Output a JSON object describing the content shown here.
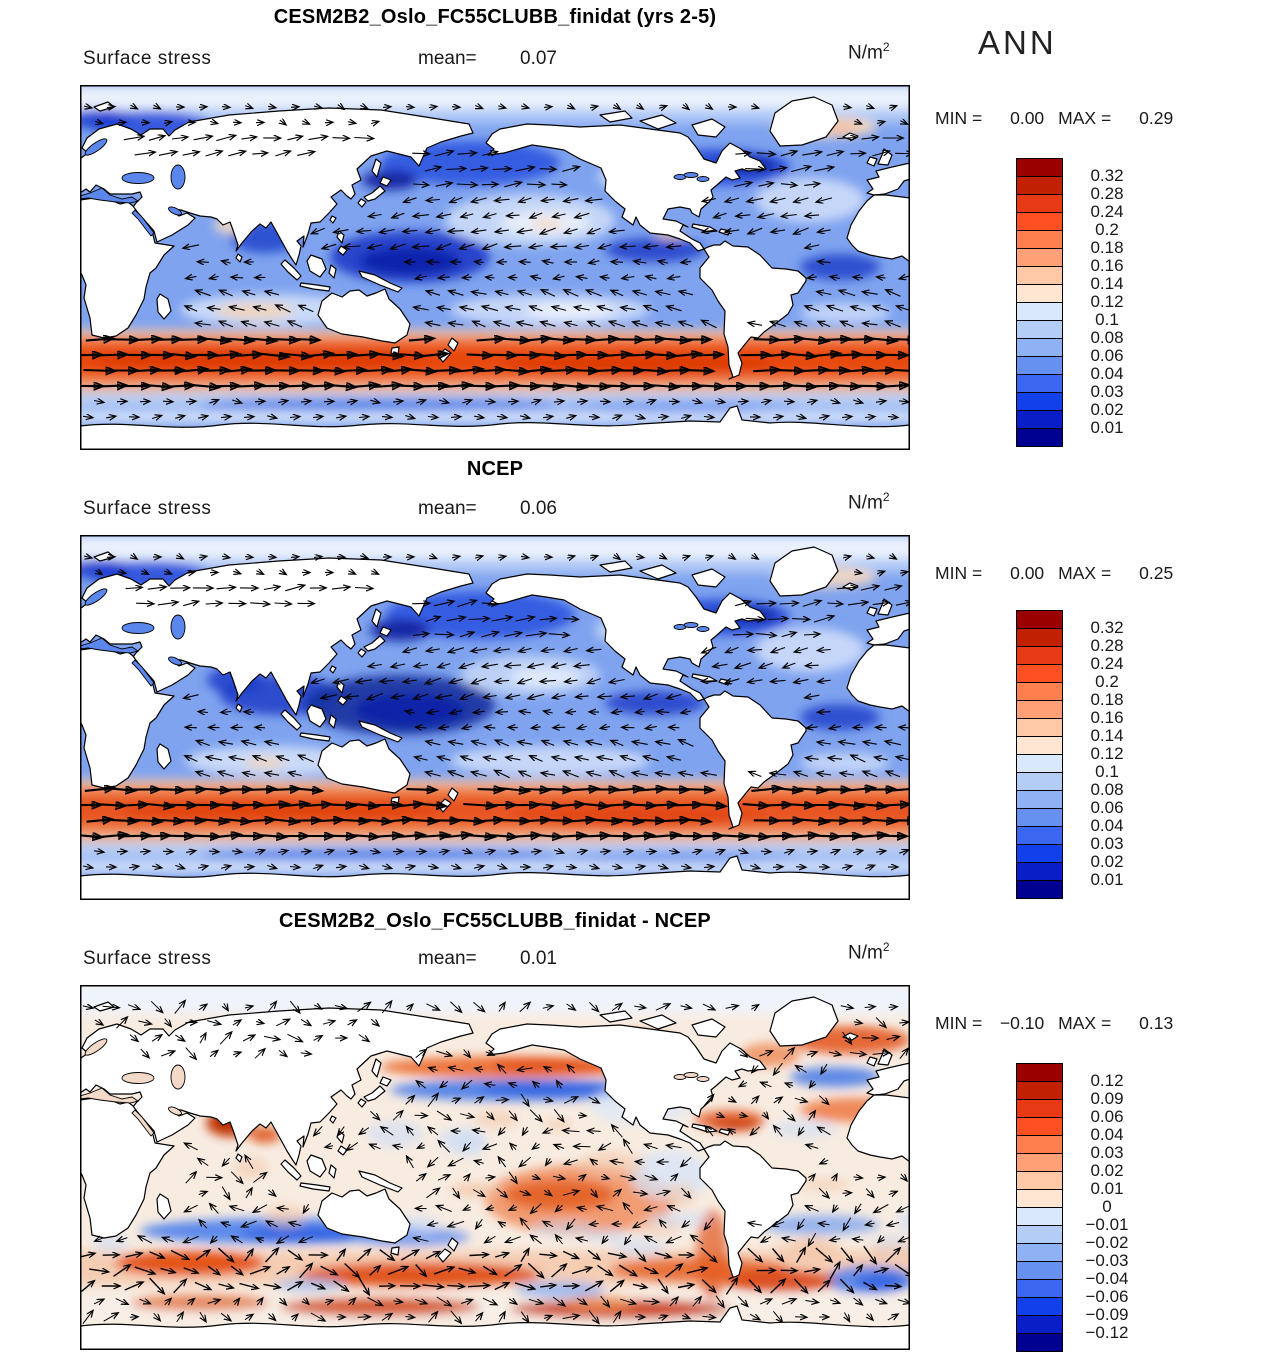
{
  "season": "ANN",
  "unit": {
    "base": "N/m",
    "exponent": "2"
  },
  "panels": [
    {
      "title": "CESM2B2_Oslo_FC55CLUBB_finidat (yrs 2-5)",
      "field_label": "Surface stress",
      "mean_label": "mean=",
      "mean_value": "0.07",
      "min_label": "MIN =",
      "min_value": "0.00",
      "max_label": "MAX =",
      "max_value": "0.29"
    },
    {
      "title": "NCEP",
      "field_label": "Surface stress",
      "mean_label": "mean=",
      "mean_value": "0.06",
      "min_label": "MIN =",
      "min_value": "0.00",
      "max_label": "MAX =",
      "max_value": "0.25"
    },
    {
      "title": "CESM2B2_Oslo_FC55CLUBB_finidat - NCEP",
      "field_label": "Surface stress",
      "mean_label": "mean=",
      "mean_value": "0.01",
      "min_label": "MIN =",
      "min_value": "−0.10",
      "max_label": "MAX =",
      "max_value": "0.13"
    }
  ],
  "colorbars": [
    {
      "cell_colors": [
        "#9B0000",
        "#C22100",
        "#E63914",
        "#FF5024",
        "#FF7F4F",
        "#FFA077",
        "#FFC9A8",
        "#FEE6D2",
        "#D9E8FB",
        "#B4CDF7",
        "#8FB2F4",
        "#6691F0",
        "#3A66F0",
        "#1240EA",
        "#0A1EC8",
        "#000090"
      ],
      "tick_labels": [
        "0.32",
        "0.28",
        "0.24",
        "0.2",
        "0.18",
        "0.16",
        "0.14",
        "0.12",
        "0.1",
        "0.08",
        "0.06",
        "0.04",
        "0.03",
        "0.02",
        "0.01"
      ]
    },
    {
      "cell_colors": [
        "#9B0000",
        "#C22100",
        "#E63914",
        "#FF5024",
        "#FF7F4F",
        "#FFA077",
        "#FFC9A8",
        "#FEE6D2",
        "#D9E8FB",
        "#B4CDF7",
        "#8FB2F4",
        "#6691F0",
        "#3A66F0",
        "#1240EA",
        "#0A1EC8",
        "#000090"
      ],
      "tick_labels": [
        "0.32",
        "0.28",
        "0.24",
        "0.2",
        "0.18",
        "0.16",
        "0.14",
        "0.12",
        "0.1",
        "0.08",
        "0.06",
        "0.04",
        "0.03",
        "0.02",
        "0.01"
      ]
    },
    {
      "cell_colors": [
        "#9B0000",
        "#C22100",
        "#E63914",
        "#FF5024",
        "#FF7F4F",
        "#FFA077",
        "#FFC9A8",
        "#FEE6D2",
        "#D9E8FB",
        "#B4CDF7",
        "#8FB2F4",
        "#6691F0",
        "#3A66F0",
        "#1240EA",
        "#0A1EC8",
        "#000090"
      ],
      "tick_labels": [
        "0.12",
        "0.09",
        "0.06",
        "0.04",
        "0.03",
        "0.02",
        "0.01",
        "0",
        "−0.01",
        "−0.02",
        "−0.03",
        "−0.04",
        "−0.06",
        "−0.09",
        "−0.12"
      ]
    }
  ],
  "chart_data": {
    "type": "heatmap",
    "subtype": "filled_contour_vector_map",
    "season": "ANN",
    "variable": "Surface stress",
    "units": "N/m^2",
    "projection": "global cylindrical lat-lon, 90N-90S",
    "legend_position": "right",
    "panels": [
      {
        "name": "model",
        "title": "CESM2B2_Oslo_FC55CLUBB_finidat (yrs 2-5)",
        "mean": 0.07,
        "min": 0.0,
        "max": 0.29,
        "contour_levels": [
          0.01,
          0.02,
          0.03,
          0.04,
          0.06,
          0.08,
          0.1,
          0.12,
          0.14,
          0.16,
          0.18,
          0.2,
          0.24,
          0.28,
          0.32
        ],
        "features": [
          "weak stress (blue, <0.1) over most tropical and subtropical oceans",
          "darkest blue minima along equatorial west Pacific, Bay of Bengal, equatorial Atlantic",
          "light/peach patches in Norwegian Sea, central N Pacific, Arabian Sea, S Indian subtropics",
          "strong westerly stress maximum band 0.14-0.32 (orange/red) across Southern Ocean 40-60S",
          "vectors: easterly trades in tropics, westerlies in midlatitudes, strong eastward arrows in Southern Ocean"
        ]
      },
      {
        "name": "reference",
        "title": "NCEP",
        "mean": 0.06,
        "min": 0.0,
        "max": 0.25,
        "contour_levels": [
          0.01,
          0.02,
          0.03,
          0.04,
          0.06,
          0.08,
          0.1,
          0.12,
          0.14,
          0.16,
          0.18,
          0.2,
          0.24,
          0.28,
          0.32
        ],
        "features": [
          "similar pattern to model but weaker overall",
          "dark blue minima over Arabian Sea, equatorial Indian and west Pacific",
          "Southern Ocean westerly maximum slightly weaker (max 0.25)"
        ]
      },
      {
        "name": "difference",
        "title": "CESM2B2_Oslo_FC55CLUBB_finidat - NCEP",
        "mean": 0.01,
        "min": -0.1,
        "max": 0.13,
        "contour_levels": [
          -0.12,
          -0.09,
          -0.06,
          -0.04,
          -0.03,
          -0.02,
          -0.01,
          0,
          0.01,
          0.02,
          0.03,
          0.04,
          0.06,
          0.09,
          0.12
        ],
        "features": [
          "mottled weak differences (|d|<0.04) over most oceans",
          "strong positive (red) over Arabian Sea, N Atlantic storm track, SE Pacific trades",
          "negative (blue) bands along 40-45N in N Pacific and N Atlantic, 35-45S in S Indian and S Atlantic",
          "strong positive band near 55-60S upstream of Drake Passage"
        ]
      }
    ],
    "palette_top_to_bottom": [
      "#9B0000",
      "#C22100",
      "#E63914",
      "#FF5024",
      "#FF7F4F",
      "#FFA077",
      "#FFC9A8",
      "#FEE6D2",
      "#D9E8FB",
      "#B4CDF7",
      "#8FB2F4",
      "#6691F0",
      "#3A66F0",
      "#1240EA",
      "#0A1EC8",
      "#000090"
    ]
  }
}
